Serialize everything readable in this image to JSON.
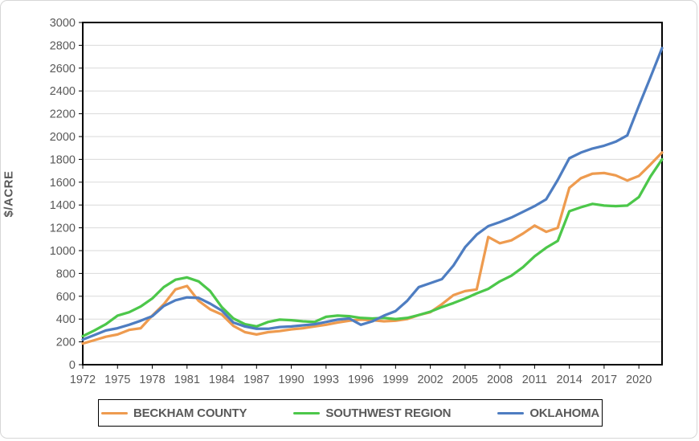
{
  "chart_data": {
    "type": "line",
    "title": "",
    "ylabel": "$/ACRE",
    "xlabel": "",
    "ylim": [
      0,
      3000
    ],
    "ytick_step": 200,
    "grid": "horizontal-only",
    "legend_position": "bottom-boxed",
    "x": [
      1972,
      1973,
      1974,
      1975,
      1976,
      1977,
      1978,
      1979,
      1980,
      1981,
      1982,
      1983,
      1984,
      1985,
      1986,
      1987,
      1988,
      1989,
      1990,
      1991,
      1992,
      1993,
      1994,
      1995,
      1996,
      1997,
      1998,
      1999,
      2000,
      2001,
      2002,
      2003,
      2004,
      2005,
      2006,
      2007,
      2008,
      2009,
      2010,
      2011,
      2012,
      2013,
      2014,
      2015,
      2016,
      2017,
      2018,
      2019,
      2020,
      2021,
      2022
    ],
    "xtick_labels": [
      1972,
      1975,
      1978,
      1981,
      1984,
      1987,
      1990,
      1993,
      1996,
      1999,
      2002,
      2005,
      2008,
      2011,
      2014,
      2017,
      2020
    ],
    "series": [
      {
        "name": "BECKHAM COUNTY",
        "color": "#EE9B4F",
        "values": [
          185,
          215,
          245,
          265,
          305,
          320,
          430,
          530,
          660,
          690,
          560,
          485,
          440,
          340,
          285,
          265,
          285,
          295,
          310,
          320,
          335,
          350,
          370,
          385,
          395,
          390,
          380,
          385,
          400,
          435,
          460,
          530,
          610,
          645,
          660,
          1120,
          1065,
          1090,
          1150,
          1220,
          1165,
          1200,
          1550,
          1635,
          1675,
          1680,
          1660,
          1615,
          1655,
          1755,
          1860
        ]
      },
      {
        "name": "SOUTHWEST REGION",
        "color": "#4CC74A",
        "values": [
          250,
          300,
          355,
          430,
          460,
          510,
          580,
          680,
          745,
          765,
          730,
          645,
          505,
          405,
          355,
          335,
          375,
          395,
          390,
          380,
          375,
          420,
          430,
          425,
          410,
          405,
          410,
          400,
          410,
          435,
          465,
          505,
          540,
          580,
          625,
          665,
          730,
          780,
          855,
          950,
          1025,
          1085,
          1345,
          1380,
          1410,
          1395,
          1390,
          1395,
          1470,
          1650,
          1800
        ]
      },
      {
        "name": "OKLAHOMA",
        "color": "#4E7DC1",
        "values": [
          220,
          260,
          300,
          320,
          350,
          385,
          425,
          515,
          565,
          590,
          585,
          535,
          475,
          370,
          335,
          315,
          315,
          330,
          335,
          345,
          355,
          375,
          395,
          405,
          350,
          380,
          430,
          470,
          560,
          680,
          715,
          750,
          870,
          1030,
          1140,
          1215,
          1250,
          1290,
          1340,
          1390,
          1450,
          1620,
          1810,
          1860,
          1895,
          1920,
          1955,
          2010,
          2270,
          2520,
          2775
        ]
      }
    ]
  },
  "style": {
    "axis_text_color": "#595959",
    "gridline_color": "#D9D9D9",
    "plot_border_color": "#000000",
    "legend_border_color": "#000000",
    "background": "#FFFFFF"
  }
}
